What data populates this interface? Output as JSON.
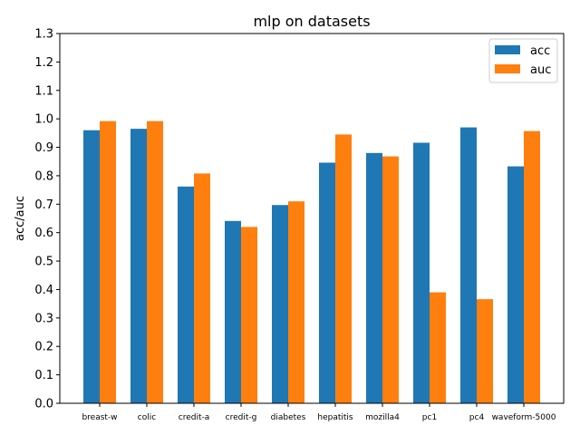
{
  "chart_data": {
    "type": "bar",
    "title": "mlp on datasets",
    "xlabel": "",
    "ylabel": "acc/auc",
    "ylim": [
      0,
      1.3
    ],
    "yticks": [
      0.0,
      0.1,
      0.2,
      0.3,
      0.4,
      0.5,
      0.6,
      0.7,
      0.8,
      0.9,
      1.0,
      1.1,
      1.2,
      1.3
    ],
    "ytick_labels": [
      "0.0",
      "0.1",
      "0.2",
      "0.3",
      "0.4",
      "0.5",
      "0.6",
      "0.7",
      "0.8",
      "0.9",
      "1.0",
      "1.1",
      "1.2",
      "1.3"
    ],
    "categories": [
      "breast-w",
      "colic",
      "credit-a",
      "credit-g",
      "diabetes",
      "hepatitis",
      "mozilla4",
      "pc1",
      "pc4",
      "waveform-5000"
    ],
    "series": [
      {
        "name": "acc",
        "color": "#1f77b4",
        "values": [
          0.96,
          0.965,
          0.762,
          0.641,
          0.697,
          0.846,
          0.88,
          0.916,
          0.97,
          0.833
        ]
      },
      {
        "name": "auc",
        "color": "#ff7f0e",
        "values": [
          0.992,
          0.992,
          0.808,
          0.62,
          0.71,
          0.945,
          0.868,
          0.39,
          0.366,
          0.957
        ]
      }
    ],
    "grid": false,
    "legend_position": "top-right"
  }
}
